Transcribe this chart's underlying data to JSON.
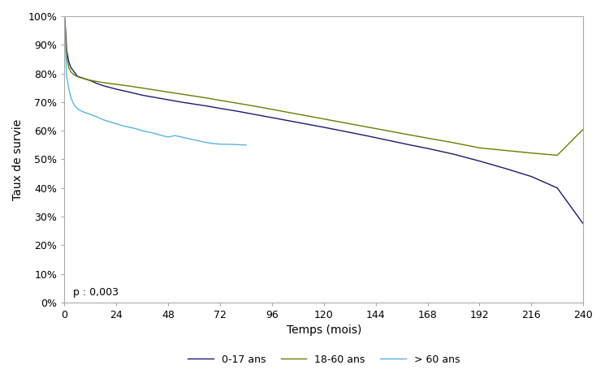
{
  "title": "",
  "xlabel": "Temps (mois)",
  "ylabel": "Taux de survie",
  "xlim": [
    0,
    240
  ],
  "ylim": [
    0,
    1.0
  ],
  "xticks": [
    0,
    24,
    48,
    72,
    96,
    120,
    144,
    168,
    192,
    216,
    240
  ],
  "yticks": [
    0.0,
    0.1,
    0.2,
    0.3,
    0.4,
    0.5,
    0.6,
    0.7,
    0.8,
    0.9,
    1.0
  ],
  "annotation": "p : 0,003",
  "legend_labels": [
    "0-17 ans",
    "18-60 ans",
    "> 60 ans"
  ],
  "colors": {
    "group1": "#1a1a6e",
    "group2": "#6b7c00",
    "group3": "#5ab4e0"
  },
  "background_color": "#ffffff",
  "curve_0_17": {
    "x": [
      0,
      0.3,
      0.5,
      1,
      2,
      3,
      4,
      5,
      6,
      8,
      10,
      12,
      15,
      18,
      24,
      30,
      36,
      42,
      48,
      54,
      60,
      66,
      72,
      80,
      90,
      100,
      110,
      120,
      130,
      140,
      150,
      160,
      168,
      180,
      192,
      204,
      216,
      228,
      240
    ],
    "y": [
      1.0,
      0.97,
      0.95,
      0.88,
      0.84,
      0.82,
      0.81,
      0.8,
      0.79,
      0.785,
      0.78,
      0.775,
      0.765,
      0.757,
      0.745,
      0.735,
      0.724,
      0.716,
      0.708,
      0.7,
      0.693,
      0.686,
      0.678,
      0.668,
      0.654,
      0.64,
      0.626,
      0.612,
      0.597,
      0.582,
      0.566,
      0.55,
      0.538,
      0.518,
      0.494,
      0.468,
      0.44,
      0.4,
      0.275
    ]
  },
  "curve_18_60": {
    "x": [
      0,
      0.3,
      0.5,
      1,
      2,
      3,
      4,
      5,
      6,
      8,
      10,
      12,
      15,
      18,
      24,
      30,
      36,
      42,
      48,
      54,
      60,
      66,
      72,
      80,
      90,
      100,
      110,
      120,
      130,
      140,
      150,
      160,
      168,
      180,
      192,
      216,
      228,
      240
    ],
    "y": [
      1.0,
      0.96,
      0.93,
      0.86,
      0.82,
      0.805,
      0.798,
      0.793,
      0.789,
      0.784,
      0.78,
      0.776,
      0.772,
      0.768,
      0.762,
      0.756,
      0.749,
      0.742,
      0.735,
      0.728,
      0.721,
      0.714,
      0.706,
      0.696,
      0.683,
      0.669,
      0.655,
      0.641,
      0.627,
      0.613,
      0.599,
      0.585,
      0.574,
      0.558,
      0.54,
      0.522,
      0.514,
      0.605
    ]
  },
  "curve_60plus": {
    "x": [
      0,
      0.3,
      0.5,
      1,
      2,
      3,
      4,
      5,
      6,
      8,
      10,
      12,
      15,
      18,
      21,
      24,
      27,
      30,
      33,
      36,
      39,
      42,
      45,
      48,
      51,
      54,
      57,
      60,
      63,
      66,
      69,
      72,
      78,
      84
    ],
    "y": [
      1.0,
      0.92,
      0.88,
      0.79,
      0.745,
      0.715,
      0.697,
      0.685,
      0.676,
      0.668,
      0.662,
      0.657,
      0.648,
      0.638,
      0.631,
      0.624,
      0.617,
      0.612,
      0.607,
      0.6,
      0.595,
      0.59,
      0.583,
      0.578,
      0.583,
      0.578,
      0.573,
      0.568,
      0.563,
      0.558,
      0.555,
      0.553,
      0.552,
      0.55
    ]
  }
}
